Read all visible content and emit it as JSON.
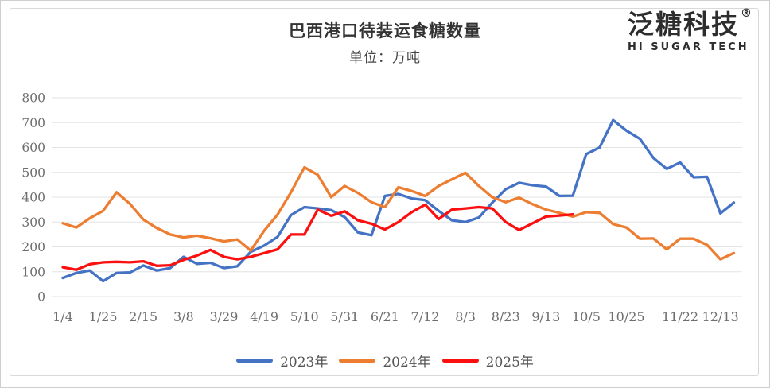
{
  "page": {
    "background": "#ffffff",
    "card_border_color": "#d9d9d9"
  },
  "header": {
    "title": "巴西港口待装运食糖数量",
    "subtitle": "单位：万吨",
    "logo": {
      "name": "泛糖科技",
      "registered_mark": "®",
      "tagline": "HI SUGAR TECH"
    }
  },
  "chart_data": {
    "type": "line",
    "title": "巴西港口待装运食糖数量",
    "unit": "万吨",
    "grid": true,
    "legend_position": "bottom",
    "y_axis": {
      "min": 0,
      "max": 800,
      "step": 100,
      "tick_labels": [
        "0",
        "100",
        "200",
        "300",
        "400",
        "500",
        "600",
        "700",
        "800"
      ],
      "tick_color": "#6e6e6e"
    },
    "x_axis": {
      "tick_labels": [
        "1/4",
        "1/25",
        "2/15",
        "3/8",
        "3/29",
        "4/19",
        "5/10",
        "5/31",
        "6/21",
        "7/12",
        "8/3",
        "8/23",
        "9/13",
        "10/5",
        "10/25",
        "11/22",
        "12/13"
      ],
      "tick_weeks": [
        0,
        3,
        6,
        9,
        12,
        15,
        18,
        21,
        24,
        27,
        30,
        33,
        36,
        39,
        42,
        46,
        49
      ],
      "tick_color": "#6e6e6e"
    },
    "gridline_color": "#e3e3e3",
    "series": [
      {
        "name": "2023年",
        "color": "#4472c4",
        "start_week": 0,
        "values": [
          75,
          95,
          105,
          62,
          95,
          97,
          125,
          105,
          115,
          160,
          132,
          136,
          115,
          122,
          180,
          205,
          240,
          328,
          360,
          355,
          348,
          320,
          258,
          247,
          405,
          413,
          395,
          388,
          345,
          307,
          300,
          318,
          378,
          432,
          458,
          448,
          443,
          405,
          406,
          573,
          600,
          710,
          668,
          635,
          558,
          514,
          540,
          480,
          482,
          335,
          378
        ]
      },
      {
        "name": "2024年",
        "color": "#ed7d31",
        "start_week": 0,
        "values": [
          295,
          278,
          315,
          345,
          420,
          373,
          310,
          276,
          250,
          238,
          245,
          235,
          222,
          230,
          185,
          265,
          330,
          420,
          520,
          490,
          400,
          445,
          417,
          380,
          360,
          440,
          425,
          405,
          445,
          472,
          498,
          445,
          400,
          380,
          398,
          372,
          350,
          337,
          322,
          340,
          337,
          292,
          278,
          233,
          234,
          190,
          233,
          233,
          208,
          150,
          175
        ]
      },
      {
        "name": "2025年",
        "color": "#fb0f0f",
        "start_week": 0,
        "values": [
          118,
          108,
          130,
          138,
          140,
          138,
          142,
          124,
          126,
          148,
          165,
          188,
          160,
          150,
          160,
          175,
          190,
          250,
          250,
          350,
          325,
          343,
          307,
          293,
          270,
          300,
          340,
          370,
          312,
          350,
          355,
          360,
          355,
          300,
          268,
          295,
          322,
          326,
          331
        ]
      }
    ]
  }
}
